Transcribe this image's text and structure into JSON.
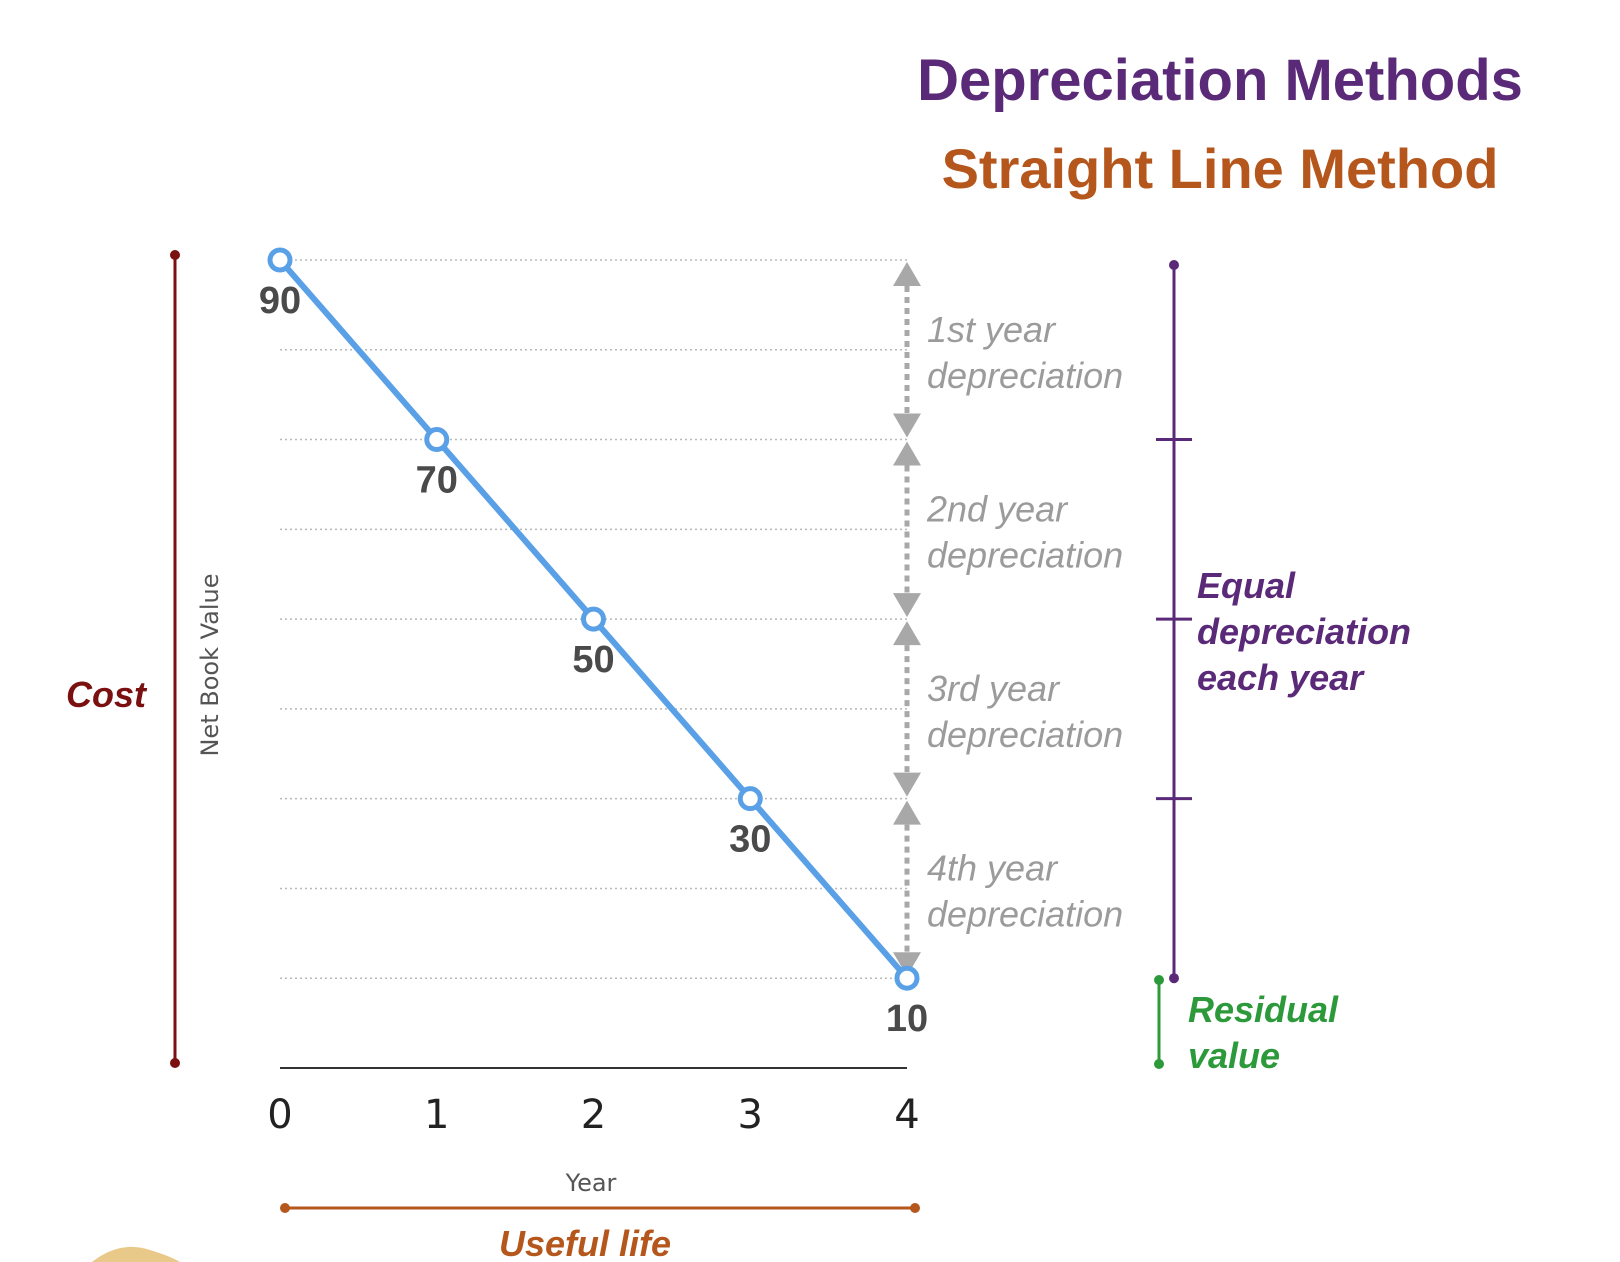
{
  "title": "Depreciation  Methods",
  "subtitle": "Straight Line Method",
  "colors": {
    "title": "#5a2a79",
    "subtitle": "#b5561c",
    "line": "#5aa0e6",
    "grid": "#b8b8b8",
    "cost": "#7a1010",
    "equal": "#5a2a79",
    "residual": "#2c9a3a",
    "useful_life": "#b5561c",
    "arrow": "#a8a8a8"
  },
  "chart_data": {
    "type": "line",
    "x": [
      0,
      1,
      2,
      3,
      4
    ],
    "series": [
      {
        "values": [
          90,
          70,
          50,
          30,
          10
        ]
      }
    ],
    "point_labels": [
      "90",
      "70",
      "50",
      "30",
      "10"
    ],
    "xlabel": "Year",
    "ylabel": "Net Book Value",
    "xlim": [
      0,
      4
    ],
    "ylim": [
      0,
      90
    ],
    "grid_values": [
      10,
      20,
      30,
      40,
      50,
      60,
      70,
      80,
      90
    ],
    "x_ticks": [
      "0",
      "1",
      "2",
      "3",
      "4"
    ],
    "depreciation_segments": [
      {
        "from": 90,
        "to": 70,
        "line1": "1st year",
        "line2": "depreciation"
      },
      {
        "from": 70,
        "to": 50,
        "line1": "2nd year",
        "line2": "depreciation"
      },
      {
        "from": 50,
        "to": 30,
        "line1": "3rd year",
        "line2": "depreciation"
      },
      {
        "from": 30,
        "to": 10,
        "line1": "4th year",
        "line2": "depreciation"
      }
    ]
  },
  "annotations": {
    "cost": "Cost",
    "equal": [
      "Equal",
      "depreciation",
      "each year"
    ],
    "residual": [
      "Residual",
      "value"
    ],
    "useful_life": "Useful life"
  }
}
